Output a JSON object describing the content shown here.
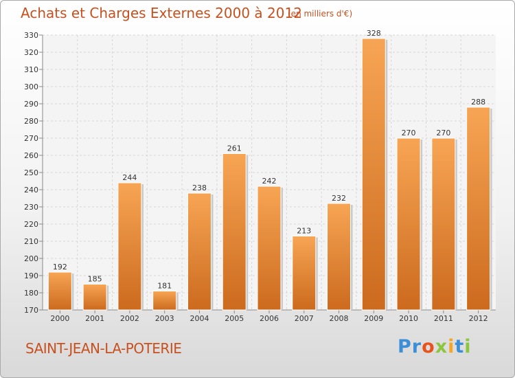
{
  "header": {
    "title": "Achats et Charges Externes 2000 à 2012",
    "subtitle": "(en milliers d'€)"
  },
  "footer": {
    "place": "SAINT-JEAN-LA-POTERIE",
    "logo_letters": [
      "P",
      "r",
      "o",
      "x",
      "i",
      "t",
      "i"
    ],
    "logo_colors": [
      "#3c8fd6",
      "#3c8fd6",
      "#e8531b",
      "#8cc63f",
      "#f5a623",
      "#3c8fd6",
      "#8cc63f"
    ]
  },
  "colors": {
    "bar_top": "#f7a554",
    "bar_bottom": "#cc6a1e",
    "title": "#c8501e"
  },
  "chart_data": {
    "type": "bar",
    "title": "Achats et Charges Externes 2000 à 2012",
    "subtitle": "(en milliers d'€)",
    "categories": [
      "2000",
      "2001",
      "2002",
      "2003",
      "2004",
      "2005",
      "2006",
      "2007",
      "2008",
      "2009",
      "2010",
      "2011",
      "2012"
    ],
    "values": [
      192,
      185,
      244,
      181,
      238,
      261,
      242,
      213,
      232,
      328,
      270,
      270,
      288
    ],
    "ylim": [
      170,
      330
    ],
    "yticks": [
      170,
      180,
      190,
      200,
      210,
      220,
      230,
      240,
      250,
      260,
      270,
      280,
      290,
      300,
      310,
      320,
      330
    ],
    "xlabel": "",
    "ylabel": "",
    "grid": true,
    "data_labels": true
  }
}
